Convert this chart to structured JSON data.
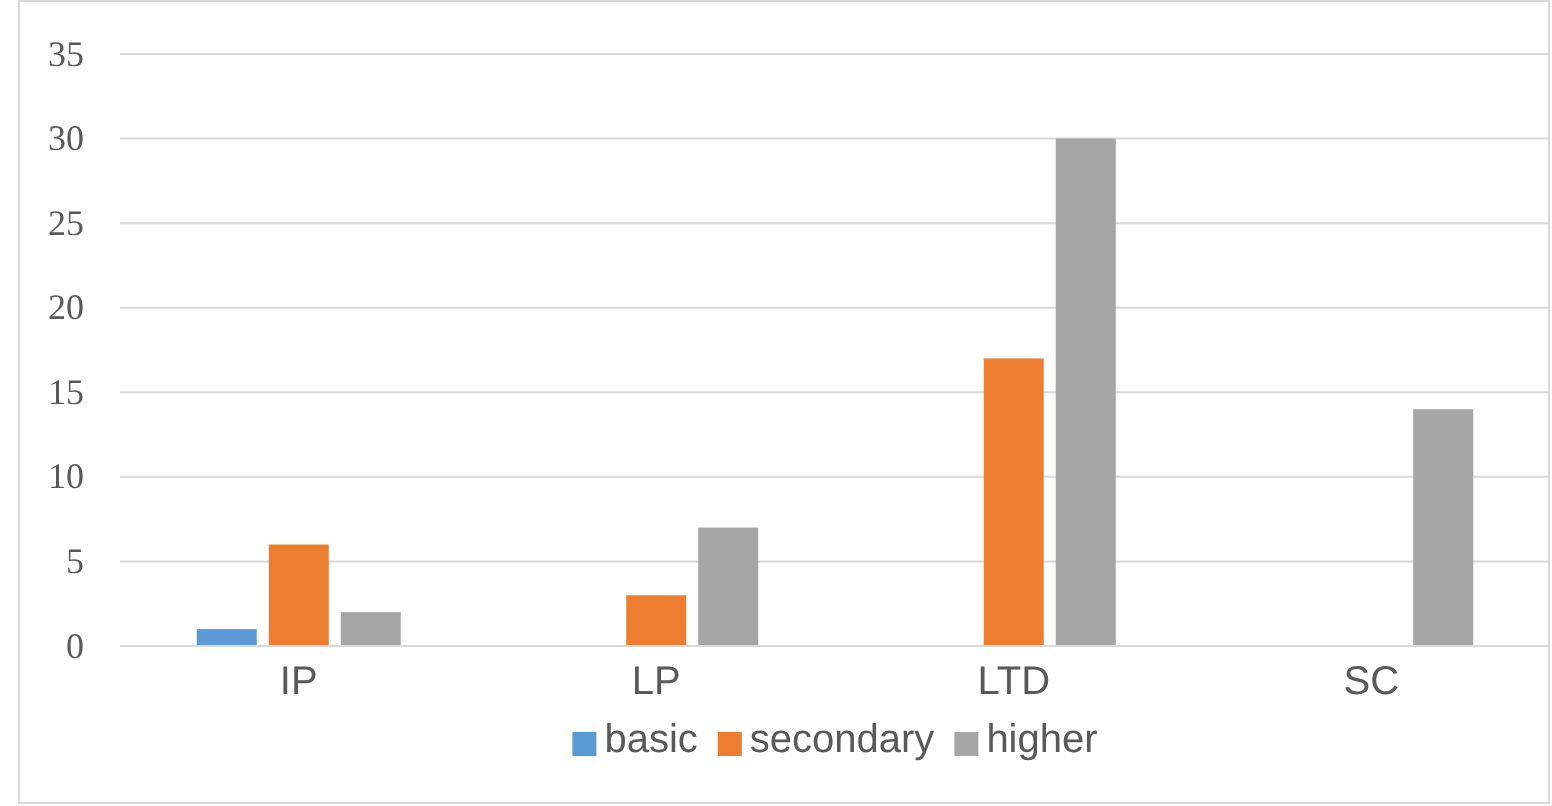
{
  "chart_data": {
    "type": "bar",
    "categories": [
      "IP",
      "LP",
      "LTD",
      "SC"
    ],
    "series": [
      {
        "name": "basic",
        "color": "#5b9bd5",
        "values": [
          1,
          null,
          null,
          null
        ]
      },
      {
        "name": "secondary",
        "color": "#ed7d31",
        "values": [
          6,
          3,
          17,
          null
        ]
      },
      {
        "name": "higher",
        "color": "#a5a5a5",
        "values": [
          2,
          7,
          30,
          14
        ]
      }
    ],
    "ylim": [
      0,
      35
    ],
    "yticks": [
      0,
      5,
      10,
      15,
      20,
      25,
      30,
      35
    ],
    "grid": "y",
    "legend": "bottom"
  }
}
